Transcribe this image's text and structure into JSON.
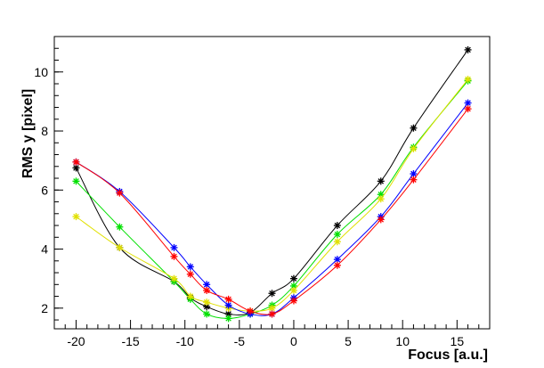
{
  "chart_data": {
    "type": "line",
    "title": "",
    "xlabel": "Focus [a.u.]",
    "ylabel": "RMS y [pixel]",
    "xlim": [
      -22,
      18
    ],
    "ylim": [
      1.3,
      11.2
    ],
    "x_ticks": [
      -20,
      -15,
      -10,
      -5,
      0,
      5,
      10,
      15
    ],
    "y_ticks": [
      2,
      4,
      6,
      8,
      10
    ],
    "grid": false,
    "legend": "none",
    "marker": "asterisk",
    "x": [
      -20,
      -16,
      -11,
      -9.5,
      -8,
      -6,
      -4,
      -2,
      0,
      4,
      8,
      11,
      16
    ],
    "series": [
      {
        "color": "#000000",
        "values": [
          6.75,
          4.05,
          2.9,
          2.35,
          2.05,
          1.8,
          1.85,
          2.5,
          3.0,
          4.8,
          6.3,
          8.1,
          10.75
        ]
      },
      {
        "color": "#00e000",
        "values": [
          6.3,
          4.75,
          2.9,
          2.3,
          1.8,
          1.65,
          1.8,
          2.1,
          2.75,
          4.5,
          5.85,
          7.45,
          9.7
        ]
      },
      {
        "color": "#e0e000",
        "values": [
          5.1,
          4.05,
          3.0,
          2.4,
          2.2,
          2.0,
          1.9,
          2.0,
          2.6,
          4.25,
          5.7,
          7.4,
          9.75
        ]
      },
      {
        "color": "#0000ff",
        "values": [
          6.95,
          5.95,
          4.05,
          3.4,
          2.8,
          2.1,
          1.8,
          1.8,
          2.35,
          3.65,
          5.1,
          6.55,
          8.95
        ]
      },
      {
        "color": "#ff0000",
        "values": [
          6.95,
          5.9,
          3.75,
          3.15,
          2.6,
          2.3,
          1.9,
          1.8,
          2.25,
          3.45,
          5.0,
          6.35,
          8.75
        ]
      }
    ]
  }
}
